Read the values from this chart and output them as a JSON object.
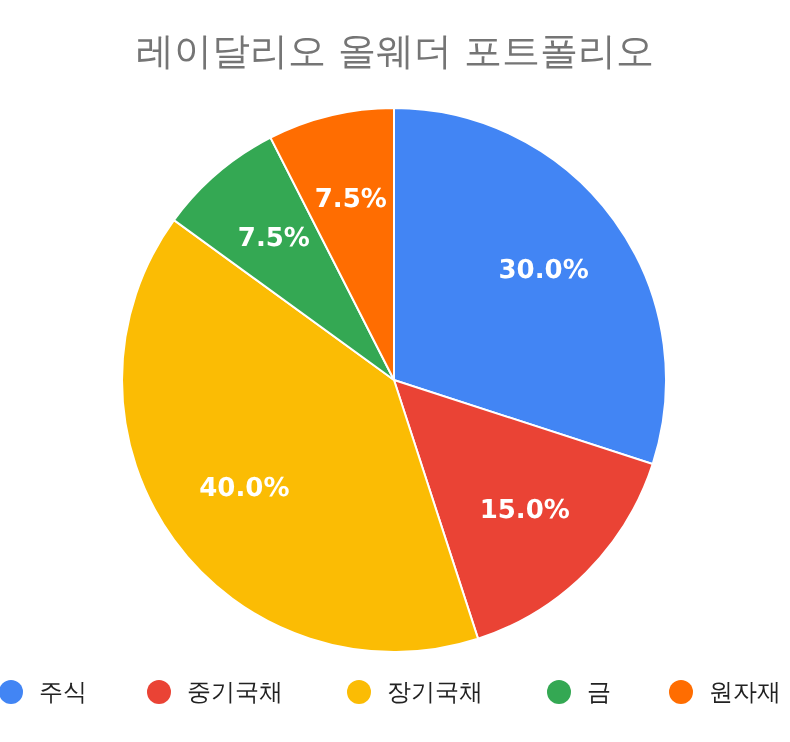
{
  "chart_data": {
    "type": "pie",
    "title": "레이달리오 올웨더 포트폴리오",
    "categories": [
      "주식",
      "중기국채",
      "장기국채",
      "금",
      "원자재"
    ],
    "values": [
      30,
      15,
      40,
      7.5,
      7.5
    ],
    "colors": [
      "#4285f4",
      "#ea4335",
      "#fbbc04",
      "#34a853",
      "#ff6d01"
    ],
    "value_labels": [
      "30.0%",
      "15.0%",
      "40.0%",
      "7.5%",
      "7.5%"
    ],
    "legend": "bottom"
  }
}
